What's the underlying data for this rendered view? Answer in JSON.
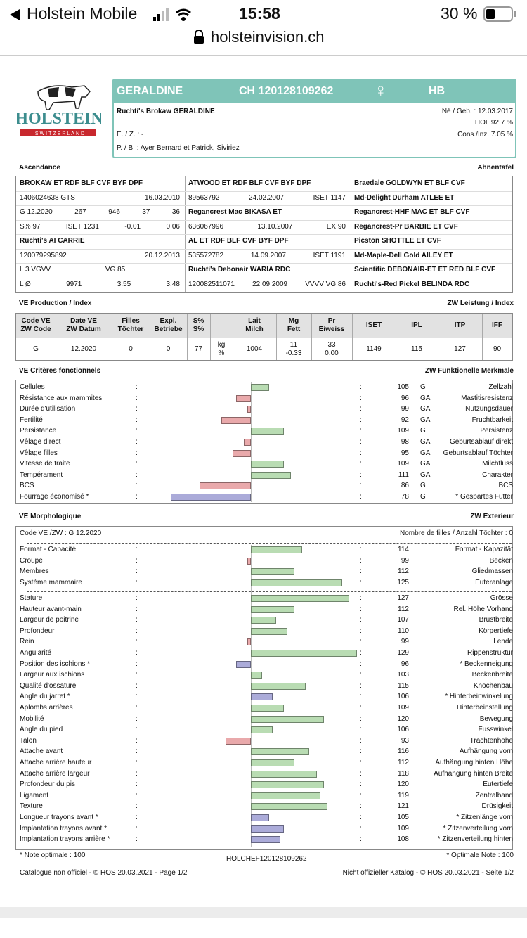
{
  "status_bar": {
    "carrier": "Holstein Mobile",
    "time": "15:58",
    "battery": "30 %"
  },
  "url": "holsteinvision.ch",
  "logo": {
    "text": "HOLSTEIN",
    "subtext": "SWITZERLAND"
  },
  "header": {
    "name": "GERALDINE",
    "id": "CH 120128109262",
    "sex": "♀",
    "breed": "HB",
    "full_name": "Ruchti's Brokaw GERALDINE",
    "birth": "Né / Geb. : 12.03.2017",
    "hol": "HOL  92.7 %",
    "ez": "E. / Z. : -",
    "cons": "Cons./Inz. 7.05 %",
    "pb": "P. / B. : Ayer Bernard et Patrick, Siviriez"
  },
  "ascendance": {
    "title": "Ascendance",
    "title_de": "Ahnentafel",
    "columns": [
      [
        "BROKAW  ET RDF BLF CVF BYF DPF",
        [
          "1406024638  GTS",
          "16.03.2010"
        ],
        [
          "G   12.2020",
          "267",
          "946",
          "37",
          "36"
        ],
        [
          "S% 97",
          "ISET 1231",
          "-0.01",
          "0.06"
        ],
        "Ruchti's AI CARRIE",
        [
          "120079295892",
          "20.12.2013"
        ],
        [
          "L 3   VGVV",
          "VG 85",
          ""
        ],
        [
          "L Ø",
          "9971",
          "3.55",
          "3.48"
        ]
      ],
      [
        "ATWOOD  ET RDF BLF CVF BYF DPF",
        [
          "89563792",
          "24.02.2007",
          "ISET 1147"
        ],
        "Regancrest Mac BIKASA  ET",
        [
          "636067996",
          "13.10.2007",
          "EX 90"
        ],
        "AL  ET RDF BLF CVF BYF DPF",
        [
          "535572782",
          "14.09.2007",
          "ISET 1191"
        ],
        "Ruchti's Debonair WARIA  RDC",
        [
          "120082511071",
          "22.09.2009",
          "VVVV  VG 86"
        ]
      ],
      [
        "Braedale GOLDWYN  ET BLF CVF",
        "Md-Delight Durham ATLEE  ET",
        "Regancrest-HHF MAC  ET BLF CVF",
        "Regancrest-Pr BARBIE  ET CVF",
        "Picston SHOTTLE  ET CVF",
        "Md-Maple-Dell Gold AILEY  ET",
        "Scientific DEBONAIR-ET  ET RED BLF CVF",
        "Ruchti's-Red Pickel BELINDA  RDC"
      ]
    ]
  },
  "production": {
    "title": "VE Production / Index",
    "title_de": "ZW Leistung / Index",
    "header": [
      [
        "Code VE",
        "ZW Code"
      ],
      [
        "Date VE",
        "ZW Datum"
      ],
      [
        "Filles",
        "Töchter"
      ],
      [
        "Expl.",
        "Betriebe"
      ],
      [
        "S%",
        "S%"
      ],
      null,
      [
        "Lait",
        "Milch"
      ],
      [
        "Mg",
        "Fett"
      ],
      [
        "Pr",
        "Eiweiss"
      ],
      [
        "ISET"
      ],
      [
        "IPL"
      ],
      [
        "ITP"
      ],
      [
        "IFF"
      ]
    ],
    "row": [
      [
        "G"
      ],
      [
        "12.2020"
      ],
      [
        "0"
      ],
      [
        "0"
      ],
      [
        "77"
      ],
      [
        "kg",
        "%"
      ],
      [
        "1004"
      ],
      [
        "11",
        "-0.33"
      ],
      [
        "33",
        "0.00"
      ],
      [
        "1149"
      ],
      [
        "115"
      ],
      [
        "127"
      ],
      [
        "90"
      ]
    ]
  },
  "bar_colors": {
    "above": "#b9dcb3",
    "below": "#e9a9ab",
    "optimal": "#ababd9"
  },
  "functional": {
    "title": "VE Critères fonctionnels",
    "title_de": "ZW Funktionelle Merkmale",
    "base": 100,
    "traits": [
      {
        "label": "Cellules",
        "value": 105,
        "code": "G",
        "label_de": "Zellzahl"
      },
      {
        "label": "Résistance aux mammites",
        "value": 96,
        "code": "GA",
        "label_de": "Mastitisresistenz"
      },
      {
        "label": "Durée d'utilisation",
        "value": 99,
        "code": "GA",
        "label_de": "Nutzungsdauer"
      },
      {
        "label": "Fertilité",
        "value": 92,
        "code": "GA",
        "label_de": "Fruchtbarkeit"
      },
      {
        "label": "Persistance",
        "value": 109,
        "code": "G",
        "label_de": "Persistenz"
      },
      {
        "label": "Vêlage direct",
        "value": 98,
        "code": "GA",
        "label_de": "Geburtsablauf direkt"
      },
      {
        "label": "Vêlage filles",
        "value": 95,
        "code": "GA",
        "label_de": "Geburtsablauf Töchter"
      },
      {
        "label": "Vitesse de traite",
        "value": 109,
        "code": "GA",
        "label_de": "Milchfluss"
      },
      {
        "label": "Tempérament",
        "value": 111,
        "code": "GA",
        "label_de": "Charakter"
      },
      {
        "label": "BCS",
        "value": 86,
        "code": "G",
        "label_de": "BCS"
      },
      {
        "label": "Fourrage économisé *",
        "value": 78,
        "code": "G",
        "label_de": "* Gespartes Futter",
        "optimal": true
      }
    ]
  },
  "morphology": {
    "title": "VE Morphologique",
    "title_de": "ZW Exterieur",
    "code": "Code VE /ZW : G 12.2020",
    "daughters": "Nombre de filles / Anzahl Töchter : 0",
    "base": 100,
    "groups": [
      [
        {
          "label": "Format - Capacité",
          "value": 114,
          "label_de": "Format - Kapazität"
        },
        {
          "label": "Croupe",
          "value": 99,
          "label_de": "Becken"
        },
        {
          "label": "Membres",
          "value": 112,
          "label_de": "Gliedmassen"
        },
        {
          "label": "Système mammaire",
          "value": 125,
          "label_de": "Euteranlage"
        }
      ],
      [
        {
          "label": "Stature",
          "value": 127,
          "label_de": "Grösse"
        },
        {
          "label": "Hauteur avant-main",
          "value": 112,
          "label_de": "Rel. Höhe Vorhand"
        },
        {
          "label": "Largeur de poitrine",
          "value": 107,
          "label_de": "Brustbreite"
        },
        {
          "label": "Profondeur",
          "value": 110,
          "label_de": "Körpertiefe"
        },
        {
          "label": "Rein",
          "value": 99,
          "label_de": "Lende"
        },
        {
          "label": "Angularité",
          "value": 129,
          "label_de": "Rippenstruktur"
        },
        {
          "label": "Position des ischions *",
          "value": 96,
          "label_de": "* Beckenneigung",
          "optimal": true
        },
        {
          "label": "Largeur aux ischions",
          "value": 103,
          "label_de": "Beckenbreite"
        },
        {
          "label": "Qualité d'ossature",
          "value": 115,
          "label_de": "Knochenbau"
        },
        {
          "label": "Angle du jarret *",
          "value": 106,
          "label_de": "* Hinterbeinwinkelung",
          "optimal": true
        },
        {
          "label": "Aplombs arrières",
          "value": 109,
          "label_de": "Hinterbeinstellung"
        },
        {
          "label": "Mobilité",
          "value": 120,
          "label_de": "Bewegung"
        },
        {
          "label": "Angle du pied",
          "value": 106,
          "label_de": "Fusswinkel"
        },
        {
          "label": "Talon",
          "value": 93,
          "label_de": "Trachtenhöhe"
        },
        {
          "label": "Attache avant",
          "value": 116,
          "label_de": "Aufhängung vorn"
        },
        {
          "label": "Attache arrière hauteur",
          "value": 112,
          "label_de": "Aufhängung hinten Höhe"
        },
        {
          "label": "Attache arrière largeur",
          "value": 118,
          "label_de": "Aufhängung hinten Breite"
        },
        {
          "label": "Profondeur du pis",
          "value": 120,
          "label_de": "Eutertiefe"
        },
        {
          "label": "Ligament",
          "value": 119,
          "label_de": "Zentralband"
        },
        {
          "label": "Texture",
          "value": 121,
          "label_de": "Drüsigkeit"
        },
        {
          "label": "Longueur trayons avant *",
          "value": 105,
          "label_de": "* Zitzenlänge vorn",
          "optimal": true
        },
        {
          "label": "Implantation trayons avant *",
          "value": 109,
          "label_de": "* Zitzenverteilung vorn",
          "optimal": true
        },
        {
          "label": "Implantation trayons arrière *",
          "value": 108,
          "label_de": "* Zitzenverteilung hinten",
          "optimal": true
        }
      ]
    ]
  },
  "footer": {
    "note_fr": "* Note optimale : 100",
    "code": "HOLCHEF120128109262",
    "note_de": "* Optimale Note : 100",
    "catalogue_fr": "Catalogue non officiel  -  © HOS 20.03.2021  -  Page 1/2",
    "catalogue_de": "Nicht offizieller Katalog  -  © HOS 20.03.2021  -  Seite 1/2"
  }
}
